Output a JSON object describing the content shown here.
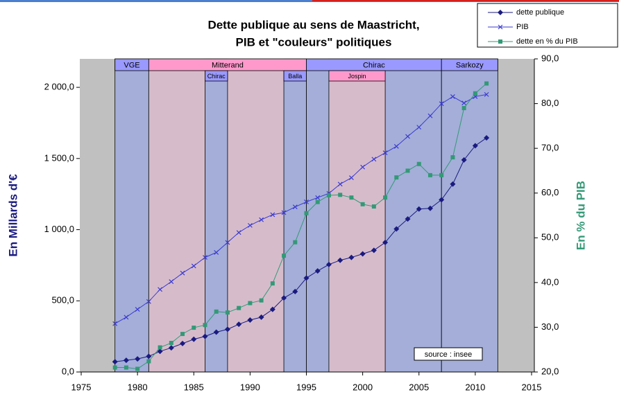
{
  "chart_data": {
    "type": "line",
    "title": "Dette publique au sens de Maastricht,",
    "subtitle": "PIB et \"couleurs\" politiques",
    "y_label": "En Millards d'€",
    "y2_label": "En % du PIB",
    "annotation": "source : insee",
    "x": [
      1978,
      1979,
      1980,
      1981,
      1982,
      1983,
      1984,
      1985,
      1986,
      1987,
      1988,
      1989,
      1990,
      1991,
      1992,
      1993,
      1994,
      1995,
      1996,
      1997,
      1998,
      1999,
      2000,
      2001,
      2002,
      2003,
      2004,
      2005,
      2006,
      2007,
      2008,
      2009,
      2010,
      2011
    ],
    "series": [
      {
        "name": "dette publique",
        "color": "#1a1a80",
        "marker": "diamond",
        "values": [
          72,
          82,
          92,
          110,
          145,
          170,
          200,
          230,
          250,
          280,
          300,
          335,
          365,
          385,
          440,
          520,
          565,
          660,
          710,
          755,
          785,
          805,
          830,
          855,
          910,
          1005,
          1075,
          1145,
          1150,
          1210,
          1320,
          1490,
          1590,
          1645
        ]
      },
      {
        "name": "PIB",
        "color": "#3b3bd0",
        "marker": "x",
        "values": [
          340,
          385,
          440,
          495,
          580,
          635,
          695,
          745,
          805,
          840,
          910,
          980,
          1030,
          1070,
          1105,
          1120,
          1160,
          1195,
          1225,
          1255,
          1320,
          1365,
          1440,
          1495,
          1540,
          1585,
          1655,
          1720,
          1800,
          1885,
          1935,
          1890,
          1935,
          1950
        ]
      },
      {
        "name": "dette en % du PIB",
        "color": "#339977",
        "marker": "square",
        "axis": "y2",
        "values": [
          21,
          21,
          20.7,
          22.4,
          25.5,
          26.5,
          28.5,
          29.9,
          30.5,
          33.5,
          33.3,
          34.3,
          35.4,
          36,
          39.8,
          46,
          49,
          55.5,
          58,
          59.5,
          59.6,
          59,
          57.5,
          57,
          59,
          63.5,
          65,
          66.5,
          64,
          64,
          68,
          79,
          82.3,
          84.5
        ]
      }
    ],
    "periods": [
      {
        "label": "VGE",
        "start": 1978,
        "end": 1981,
        "row": 1,
        "color": "#9999ff",
        "fill": "#a4aed8"
      },
      {
        "label": "Mitterand",
        "start": 1981,
        "end": 1995,
        "row": 1,
        "color": "#ff99cc",
        "fill": "#d6bccb"
      },
      {
        "label": "Chirac",
        "start": 1995,
        "end": 2007,
        "row": 1,
        "color": "#9999ff",
        "fill": "#a4aed8"
      },
      {
        "label": "Sarkozy",
        "start": 2007,
        "end": 2012,
        "row": 1,
        "color": "#9999ff",
        "fill": "#a4aed8"
      },
      {
        "label": "Chirac",
        "start": 1986,
        "end": 1988,
        "row": 2,
        "color": "#9999ff",
        "fill": "#a4aed8"
      },
      {
        "label": "Balla",
        "start": 1993,
        "end": 1995,
        "row": 2,
        "color": "#9999ff",
        "fill": "#a4aed8"
      },
      {
        "label": "Jospin",
        "start": 1997,
        "end": 2002,
        "row": 2,
        "color": "#ff99cc",
        "fill": "#d6bccb"
      }
    ],
    "xlim": [
      1975,
      2015
    ],
    "xticks": [
      1975,
      1980,
      1985,
      1990,
      1995,
      2000,
      2005,
      2010,
      2015
    ],
    "ylim": [
      0,
      2200
    ],
    "yticks": [
      {
        "value": 0,
        "label": "0,0"
      },
      {
        "value": 500,
        "label": "500,0"
      },
      {
        "value": 1000,
        "label": "1 000,0"
      },
      {
        "value": 1500,
        "label": "1 500,0"
      },
      {
        "value": 2000,
        "label": "2 000,0"
      }
    ],
    "y2lim": [
      20,
      90
    ],
    "y2ticks": [
      {
        "value": 20,
        "label": "20,0"
      },
      {
        "value": 30,
        "label": "30,0"
      },
      {
        "value": 40,
        "label": "40,0"
      },
      {
        "value": 50,
        "label": "50,0"
      },
      {
        "value": 60,
        "label": "60,0"
      },
      {
        "value": 70,
        "label": "70,0"
      },
      {
        "value": 80,
        "label": "80,0"
      },
      {
        "value": 90,
        "label": "90,0"
      }
    ],
    "background": "#c0c0c0",
    "legend": "upper right",
    "grid": false
  }
}
